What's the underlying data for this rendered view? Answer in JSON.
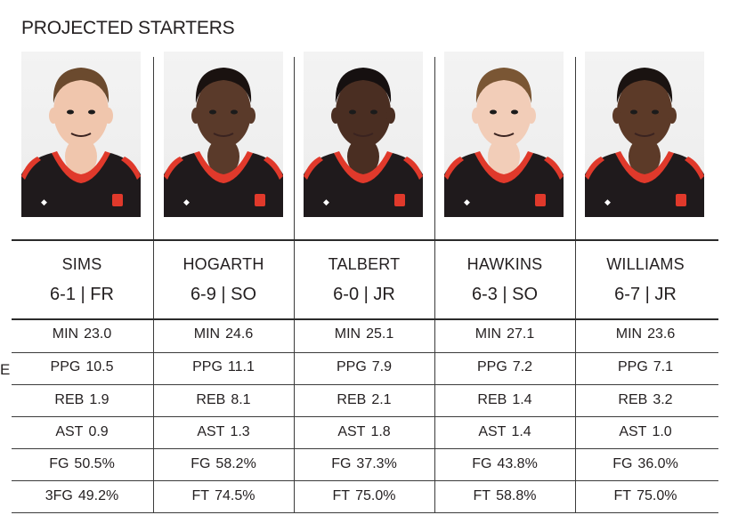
{
  "title": "PROJECTED STARTERS",
  "stray_glyph": "E",
  "colors": {
    "jersey": "#1f1a1c",
    "trim": "#e0392b",
    "line": "#3b3b3b"
  },
  "players": [
    {
      "name": "SIMS",
      "height": "6-1",
      "sep": " | ",
      "year": "FR",
      "stats": [
        {
          "label": "MIN",
          "value": "23.0"
        },
        {
          "label": "PPG",
          "value": "10.5"
        },
        {
          "label": "REB",
          "value": "1.9"
        },
        {
          "label": "AST",
          "value": "0.9"
        },
        {
          "label": "FG",
          "value": "50.5%"
        },
        {
          "label": "3FG",
          "value": "49.2%"
        }
      ],
      "skin": "#f0c6ad",
      "hair": "#6b4a2e"
    },
    {
      "name": "HOGARTH",
      "height": "6-9",
      "sep": " | ",
      "year": "SO",
      "stats": [
        {
          "label": "MIN",
          "value": "24.6"
        },
        {
          "label": "PPG",
          "value": "11.1"
        },
        {
          "label": "REB",
          "value": "8.1"
        },
        {
          "label": "AST",
          "value": "1.3"
        },
        {
          "label": "FG",
          "value": "58.2%"
        },
        {
          "label": "FT",
          "value": "74.5%"
        }
      ],
      "skin": "#5a3a2a",
      "hair": "#1a1210"
    },
    {
      "name": "TALBERT",
      "height": "6-0",
      "sep": " | ",
      "year": "JR",
      "stats": [
        {
          "label": "MIN",
          "value": "25.1"
        },
        {
          "label": "PPG",
          "value": "7.9"
        },
        {
          "label": "REB",
          "value": "2.1"
        },
        {
          "label": "AST",
          "value": "1.8"
        },
        {
          "label": "FG",
          "value": "37.3%"
        },
        {
          "label": "FT",
          "value": "75.0%"
        }
      ],
      "skin": "#4a2e22",
      "hair": "#161010"
    },
    {
      "name": "HAWKINS",
      "height": "6-3",
      "sep": " | ",
      "year": "SO",
      "stats": [
        {
          "label": "MIN",
          "value": "27.1"
        },
        {
          "label": "PPG",
          "value": "7.2"
        },
        {
          "label": "REB",
          "value": "1.4"
        },
        {
          "label": "AST",
          "value": "1.4"
        },
        {
          "label": "FG",
          "value": "43.8%"
        },
        {
          "label": "FT",
          "value": "58.8%"
        }
      ],
      "skin": "#f2cdb8",
      "hair": "#7a5634"
    },
    {
      "name": "WILLIAMS",
      "height": "6-7",
      "sep": " | ",
      "year": "JR",
      "stats": [
        {
          "label": "MIN",
          "value": "23.6"
        },
        {
          "label": "PPG",
          "value": "7.1"
        },
        {
          "label": "REB",
          "value": "3.2"
        },
        {
          "label": "AST",
          "value": "1.0"
        },
        {
          "label": "FG",
          "value": "36.0%"
        },
        {
          "label": "FT",
          "value": "75.0%"
        }
      ],
      "skin": "#5c3a28",
      "hair": "#1a1311"
    }
  ]
}
